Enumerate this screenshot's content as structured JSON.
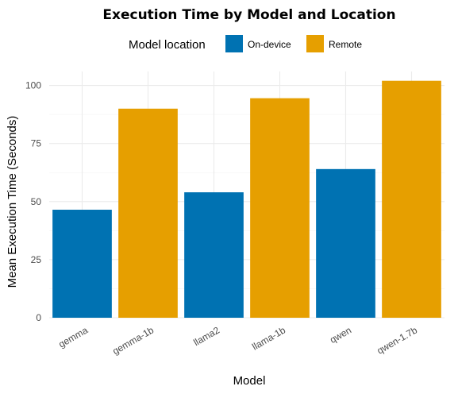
{
  "chart_data": {
    "type": "bar",
    "title": "Execution Time by Model and Location",
    "xlabel": "Model",
    "ylabel": "Mean Execution Time (Seconds)",
    "ylim": [
      0,
      106
    ],
    "yticks": [
      0,
      25,
      50,
      75,
      100
    ],
    "grid": true,
    "legend": {
      "title": "Model location",
      "placement": "top",
      "entries": [
        {
          "name": "On-device",
          "color": "#0072B2"
        },
        {
          "name": "Remote",
          "color": "#E69F00"
        }
      ]
    },
    "categories": [
      "gemma",
      "gemma-1b",
      "llama2",
      "llama-1b",
      "qwen",
      "qwen-1.7b"
    ],
    "values": [
      46.5,
      90,
      54,
      94.5,
      64,
      102
    ],
    "locations": [
      "On-device",
      "Remote",
      "On-device",
      "Remote",
      "On-device",
      "Remote"
    ]
  }
}
